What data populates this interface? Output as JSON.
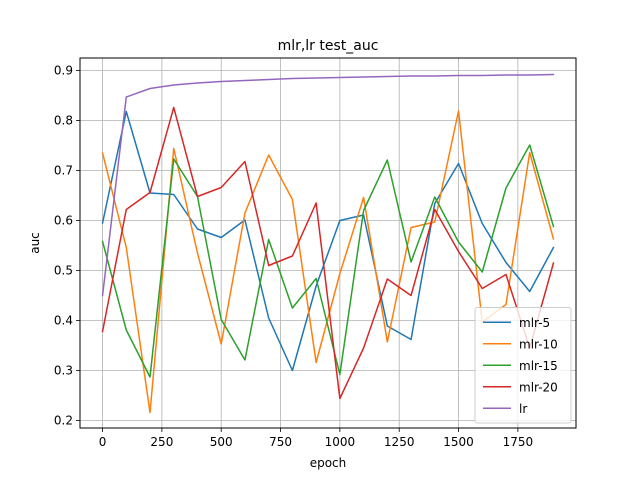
{
  "chart_data": {
    "type": "line",
    "title": "mlr,lr test_auc",
    "xlabel": "epoch",
    "ylabel": "auc",
    "xlim": [
      -95,
      1995
    ],
    "ylim": [
      0.185,
      0.925
    ],
    "xticks": [
      0,
      250,
      500,
      750,
      1000,
      1250,
      1500,
      1750
    ],
    "yticks": [
      0.2,
      0.3,
      0.4,
      0.5,
      0.6,
      0.7,
      0.8,
      0.9
    ],
    "xtick_labels": [
      "0",
      "250",
      "500",
      "750",
      "1000",
      "1250",
      "1500",
      "1750"
    ],
    "ytick_labels": [
      "0.2",
      "0.3",
      "0.4",
      "0.5",
      "0.6",
      "0.7",
      "0.8",
      "0.9"
    ],
    "grid": true,
    "legend_position": "lower-right",
    "x": [
      0,
      100,
      200,
      300,
      400,
      500,
      600,
      700,
      800,
      900,
      1000,
      1100,
      1200,
      1300,
      1400,
      1500,
      1600,
      1700,
      1800,
      1900
    ],
    "series": [
      {
        "name": "mlr-5",
        "color": "#1f77b4",
        "values": [
          0.595,
          0.818,
          0.655,
          0.652,
          0.583,
          0.566,
          0.601,
          0.405,
          0.3,
          0.469,
          0.6,
          0.611,
          0.389,
          0.362,
          0.634,
          0.714,
          0.594,
          0.516,
          0.458,
          0.546
        ]
      },
      {
        "name": "mlr-10",
        "color": "#ff7f0e",
        "values": [
          0.735,
          0.546,
          0.216,
          0.744,
          0.535,
          0.353,
          0.615,
          0.731,
          0.642,
          0.316,
          0.494,
          0.646,
          0.357,
          0.586,
          0.597,
          0.819,
          0.397,
          0.432,
          0.736,
          0.563
        ]
      },
      {
        "name": "mlr-15",
        "color": "#2ca02c",
        "values": [
          0.558,
          0.381,
          0.287,
          0.723,
          0.648,
          0.402,
          0.321,
          0.562,
          0.425,
          0.484,
          0.292,
          0.62,
          0.721,
          0.517,
          0.647,
          0.557,
          0.497,
          0.665,
          0.751,
          0.588
        ]
      },
      {
        "name": "mlr-20",
        "color": "#d62728",
        "values": [
          0.378,
          0.622,
          0.656,
          0.826,
          0.648,
          0.666,
          0.718,
          0.51,
          0.529,
          0.635,
          0.244,
          0.345,
          0.483,
          0.45,
          0.622,
          0.538,
          0.464,
          0.492,
          0.345,
          0.515
        ]
      },
      {
        "name": "lr",
        "color": "#9467bd",
        "values": [
          0.45,
          0.847,
          0.864,
          0.871,
          0.875,
          0.878,
          0.88,
          0.882,
          0.884,
          0.885,
          0.886,
          0.887,
          0.888,
          0.889,
          0.889,
          0.89,
          0.89,
          0.891,
          0.891,
          0.892
        ]
      }
    ]
  }
}
